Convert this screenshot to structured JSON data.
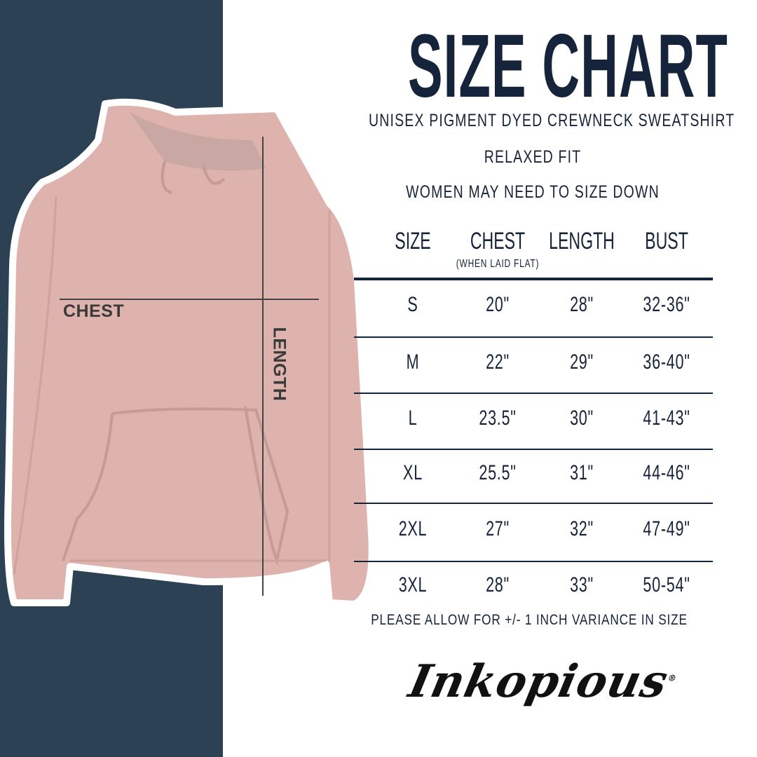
{
  "title": "SIZE CHART",
  "subtitle_lines": [
    "UNISEX PIGMENT DYED CREWNECK SWEATSHIRT",
    "RELAXED FIT",
    "WOMEN MAY NEED TO SIZE DOWN"
  ],
  "image_labels": {
    "chest": "CHEST",
    "length": "LENGTH"
  },
  "table": {
    "headers": [
      "SIZE",
      "CHEST",
      "LENGTH",
      "BUST"
    ],
    "chest_note": "(WHEN LAID FLAT)",
    "rows": [
      [
        "S",
        "20\"",
        "28\"",
        "32-36\""
      ],
      [
        "M",
        "22\"",
        "29\"",
        "36-40\""
      ],
      [
        "L",
        "23.5\"",
        "30\"",
        "41-43\""
      ],
      [
        "XL",
        "25.5\"",
        "31\"",
        "44-46\""
      ],
      [
        "2XL",
        "27\"",
        "32\"",
        "47-49\""
      ],
      [
        "3XL",
        "28\"",
        "33\"",
        "50-54\""
      ]
    ]
  },
  "footer_note": "PLEASE ALLOW FOR +/- 1 INCH VARIANCE IN SIZE",
  "logo": {
    "text": "Inkopious",
    "mark": "®"
  },
  "colors": {
    "navy": "#2c4153",
    "text": "#15243a",
    "hoodie": "#deb3ad"
  }
}
